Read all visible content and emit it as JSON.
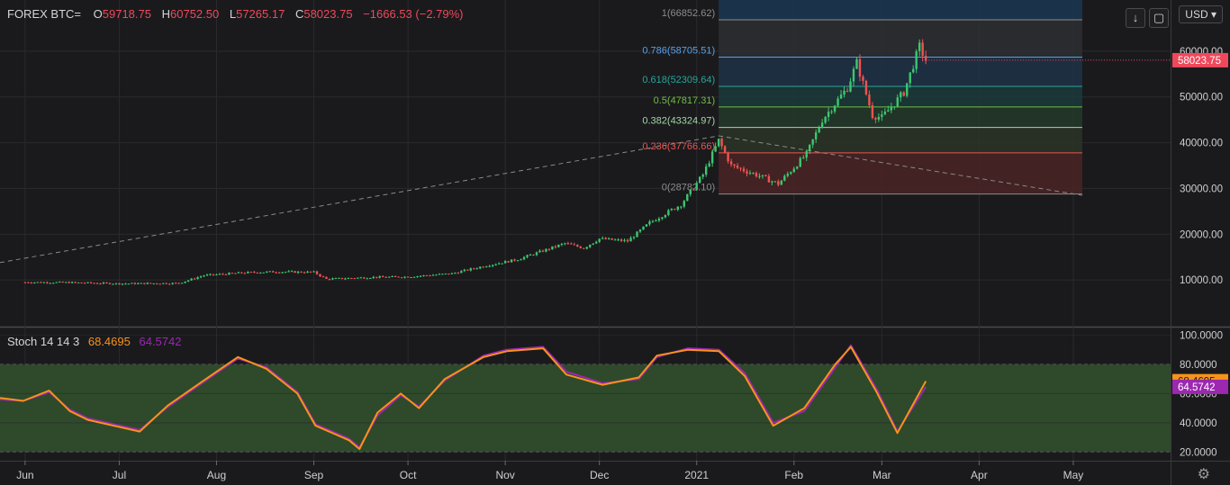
{
  "header": {
    "symbol": "FOREX BTC=",
    "open_label": "O",
    "open": "59718.75",
    "high_label": "H",
    "high": "60752.50",
    "low_label": "L",
    "low": "57265.17",
    "close_label": "C",
    "close": "58023.75",
    "change": "−1666.53 (−2.79%)"
  },
  "toolbar": {
    "currency": "USD",
    "currency_icon": "chevron-down-icon",
    "download_icon": "arrow-down-icon",
    "fullscreen_icon": "expand-icon",
    "settings_icon": "gear-icon"
  },
  "colors": {
    "up": "#26a69a",
    "up_bright": "#3cc76e",
    "down": "#ef5350",
    "stoch_k": "#f7931a",
    "stoch_d": "#9c27b0",
    "stoch_band": "#2e4a2a",
    "price_tag": "#f0485b"
  },
  "chart_data": [
    {
      "type": "candlestick",
      "title": "FOREX BTC=",
      "price_axis": {
        "ticks": [
          "60000.00",
          "50000.00",
          "40000.00",
          "30000.00",
          "20000.00",
          "10000.00"
        ],
        "range": [
          0,
          70000
        ]
      },
      "time_axis": {
        "ticks": [
          "Jun",
          "Jul",
          "Aug",
          "Sep",
          "Oct",
          "Nov",
          "Dec",
          "2021",
          "Feb",
          "Mar",
          "Apr",
          "May"
        ]
      },
      "last_price": "58023.75",
      "price_path": [
        [
          "2020-06-01",
          9500
        ],
        [
          "2020-06-15",
          9450
        ],
        [
          "2020-07-01",
          9200
        ],
        [
          "2020-07-20",
          9300
        ],
        [
          "2020-07-28",
          11000
        ],
        [
          "2020-08-10",
          11600
        ],
        [
          "2020-08-20",
          11800
        ],
        [
          "2020-09-01",
          11700
        ],
        [
          "2020-09-05",
          10200
        ],
        [
          "2020-09-20",
          10600
        ],
        [
          "2020-10-01",
          10700
        ],
        [
          "2020-10-15",
          11400
        ],
        [
          "2020-10-25",
          13000
        ],
        [
          "2020-11-05",
          14500
        ],
        [
          "2020-11-20",
          18000
        ],
        [
          "2020-11-26",
          17000
        ],
        [
          "2020-12-01",
          19000
        ],
        [
          "2020-12-10",
          18500
        ],
        [
          "2020-12-17",
          22500
        ],
        [
          "2020-12-27",
          26500
        ],
        [
          "2021-01-03",
          33000
        ],
        [
          "2021-01-08",
          40500
        ],
        [
          "2021-01-12",
          35000
        ],
        [
          "2021-01-20",
          33000
        ],
        [
          "2021-01-27",
          31000
        ],
        [
          "2021-02-05",
          37500
        ],
        [
          "2021-02-10",
          45000
        ],
        [
          "2021-02-18",
          52000
        ],
        [
          "2021-02-21",
          57500
        ],
        [
          "2021-02-26",
          46000
        ],
        [
          "2021-03-01",
          45500
        ],
        [
          "2021-03-08",
          51000
        ],
        [
          "2021-03-13",
          61000
        ],
        [
          "2021-03-15",
          58023.75
        ]
      ],
      "fibonacci": [
        {
          "level": "1",
          "price": "66852.62",
          "color": "#8c8c8c"
        },
        {
          "level": "0.786",
          "price": "58705.51",
          "color": "#5aa0e6"
        },
        {
          "level": "0.618",
          "price": "52309.64",
          "color": "#26a69a"
        },
        {
          "level": "0.5",
          "price": "47817.31",
          "color": "#6fbf40"
        },
        {
          "level": "0.382",
          "price": "43324.97",
          "color": "#a5d6a7"
        },
        {
          "level": "0.236",
          "price": "37766.66",
          "color": "#ef5350"
        },
        {
          "level": "0",
          "price": "28782.10",
          "color": "#8c8c8c"
        }
      ]
    },
    {
      "type": "line",
      "title": "Stoch 14 14 3",
      "k_value": "68.4695",
      "d_value": "64.5742",
      "y_axis": {
        "ticks": [
          "100.0000",
          "80.0000",
          "60.0000",
          "40.0000",
          "20.0000"
        ],
        "range": [
          14,
          104
        ]
      },
      "band": [
        20,
        80
      ],
      "series": [
        {
          "key": "k",
          "color": "#f7931a",
          "points": [
            [
              "2020-06-01",
              57
            ],
            [
              "2020-06-10",
              55
            ],
            [
              "2020-06-20",
              62
            ],
            [
              "2020-06-28",
              48
            ],
            [
              "2020-07-05",
              42
            ],
            [
              "2020-07-25",
              34
            ],
            [
              "2020-08-05",
              52
            ],
            [
              "2020-08-18",
              68
            ],
            [
              "2020-09-01",
              85
            ],
            [
              "2020-09-12",
              77
            ],
            [
              "2020-09-24",
              60
            ],
            [
              "2020-10-01",
              38
            ],
            [
              "2020-10-14",
              28
            ],
            [
              "2020-10-18",
              22
            ],
            [
              "2020-10-25",
              47
            ],
            [
              "2020-11-03",
              60
            ],
            [
              "2020-11-10",
              50
            ],
            [
              "2020-11-20",
              70
            ],
            [
              "2020-12-05",
              85
            ],
            [
              "2020-12-14",
              89
            ],
            [
              "2020-12-28",
              91
            ],
            [
              "2021-01-06",
              73
            ],
            [
              "2021-01-20",
              66
            ],
            [
              "2021-02-03",
              71
            ],
            [
              "2021-02-10",
              86
            ],
            [
              "2021-02-22",
              90
            ],
            [
              "2021-03-06",
              89
            ],
            [
              "2021-03-16",
              72
            ],
            [
              "2021-03-27",
              38
            ],
            [
              "2021-04-08",
              50
            ],
            [
              "2021-04-20",
              80
            ],
            [
              "2021-04-26",
              92
            ],
            [
              "2021-05-06",
              61
            ],
            [
              "2021-05-14",
              33
            ],
            [
              "2021-05-25",
              68.4695
            ]
          ]
        },
        {
          "key": "d",
          "color": "#9c27b0",
          "points": [
            [
              "2020-06-01",
              56
            ],
            [
              "2020-06-10",
              55
            ],
            [
              "2020-06-20",
              61
            ],
            [
              "2020-06-28",
              49
            ],
            [
              "2020-07-05",
              43
            ],
            [
              "2020-07-25",
              35
            ],
            [
              "2020-08-05",
              51
            ],
            [
              "2020-08-18",
              67
            ],
            [
              "2020-09-01",
              84
            ],
            [
              "2020-09-12",
              78
            ],
            [
              "2020-09-24",
              61
            ],
            [
              "2020-10-01",
              39
            ],
            [
              "2020-10-14",
              29
            ],
            [
              "2020-10-18",
              23
            ],
            [
              "2020-10-25",
              45
            ],
            [
              "2020-11-03",
              59
            ],
            [
              "2020-11-10",
              51
            ],
            [
              "2020-11-20",
              69
            ],
            [
              "2020-12-05",
              86
            ],
            [
              "2020-12-14",
              90
            ],
            [
              "2020-12-28",
              92
            ],
            [
              "2021-01-06",
              75
            ],
            [
              "2021-01-20",
              67
            ],
            [
              "2021-02-03",
              70
            ],
            [
              "2021-02-10",
              85
            ],
            [
              "2021-02-22",
              91
            ],
            [
              "2021-03-06",
              90
            ],
            [
              "2021-03-16",
              74
            ],
            [
              "2021-03-27",
              40
            ],
            [
              "2021-04-08",
              48
            ],
            [
              "2021-04-20",
              78
            ],
            [
              "2021-04-26",
              93
            ],
            [
              "2021-05-06",
              63
            ],
            [
              "2021-05-14",
              34
            ],
            [
              "2021-05-25",
              64.5742
            ]
          ]
        }
      ]
    }
  ]
}
